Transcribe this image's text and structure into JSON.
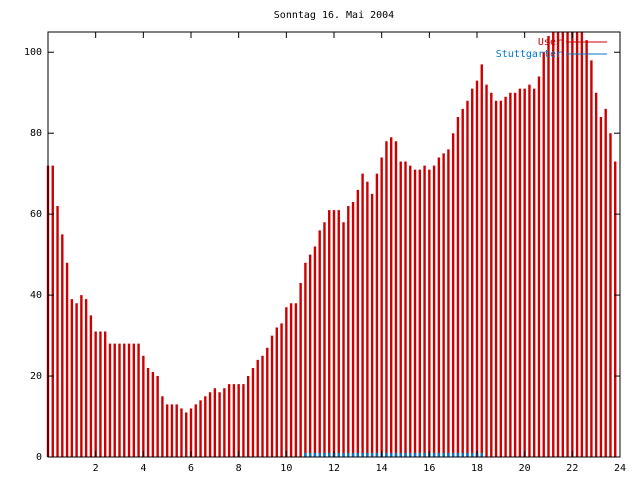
{
  "chart_data": {
    "type": "impulses",
    "title": "Sonntag 16. Mai 2004",
    "x": [
      0,
      0.2,
      0.4,
      0.6,
      0.8,
      1,
      1.2,
      1.4,
      1.6,
      1.8,
      2,
      2.2,
      2.4,
      2.6,
      2.8,
      3,
      3.2,
      3.4,
      3.6,
      3.8,
      4,
      4.2,
      4.4,
      4.6,
      4.8,
      5,
      5.2,
      5.4,
      5.6,
      5.8,
      6,
      6.2,
      6.4,
      6.6,
      6.8,
      7,
      7.2,
      7.4,
      7.6,
      7.8,
      8,
      8.2,
      8.4,
      8.6,
      8.8,
      9,
      9.2,
      9.4,
      9.6,
      9.8,
      10,
      10.2,
      10.4,
      10.6,
      10.8,
      11,
      11.2,
      11.4,
      11.6,
      11.8,
      12,
      12.2,
      12.4,
      12.6,
      12.8,
      13,
      13.2,
      13.4,
      13.6,
      13.8,
      14,
      14.2,
      14.4,
      14.6,
      14.8,
      15,
      15.2,
      15.4,
      15.6,
      15.8,
      16,
      16.2,
      16.4,
      16.6,
      16.8,
      17,
      17.2,
      17.4,
      17.6,
      17.8,
      18,
      18.2,
      18.4,
      18.6,
      18.8,
      19,
      19.2,
      19.4,
      19.6,
      19.8,
      20,
      20.2,
      20.4,
      20.6,
      20.8,
      21,
      21.2,
      21.4,
      21.6,
      21.8,
      22,
      22.2,
      22.4,
      22.6,
      22.8,
      23,
      23.2,
      23.4,
      23.6,
      23.8
    ],
    "series": [
      {
        "name": "User",
        "color": "#cc0000",
        "values": [
          72,
          72,
          62,
          55,
          48,
          39,
          38,
          40,
          39,
          35,
          31,
          31,
          31,
          28,
          28,
          28,
          28,
          28,
          28,
          28,
          25,
          22,
          21,
          20,
          15,
          13,
          13,
          13,
          12,
          11,
          12,
          13,
          14,
          15,
          16,
          17,
          16,
          17,
          18,
          18,
          18,
          18,
          20,
          22,
          24,
          25,
          27,
          30,
          32,
          33,
          37,
          38,
          38,
          43,
          48,
          50,
          52,
          56,
          58,
          61,
          61,
          61,
          58,
          62,
          63,
          66,
          70,
          68,
          65,
          70,
          74,
          78,
          79,
          78,
          73,
          73,
          72,
          71,
          71,
          72,
          71,
          72,
          74,
          75,
          76,
          80,
          84,
          86,
          88,
          91,
          93,
          97,
          92,
          90,
          88,
          88,
          89,
          90,
          90,
          91,
          91,
          92,
          91,
          94,
          100,
          104,
          105,
          105,
          105,
          105,
          105,
          105,
          105,
          103,
          98,
          90,
          84,
          86,
          80,
          73
        ]
      },
      {
        "name": "Stuttgarter",
        "color": "#0077cc",
        "values": [
          0,
          0,
          0,
          0,
          0,
          0,
          0,
          0,
          0,
          0,
          0,
          0,
          0,
          0,
          0,
          0,
          0,
          0,
          0,
          0,
          0,
          0,
          0,
          0,
          0,
          0,
          0,
          0,
          0,
          0,
          0,
          0,
          0,
          0,
          0,
          0,
          0,
          0,
          0,
          0,
          0,
          0,
          0,
          0,
          0,
          0,
          0,
          0,
          0,
          0,
          0,
          0,
          0,
          0,
          1,
          1,
          1,
          1,
          1,
          1,
          1,
          1,
          1,
          1,
          1,
          1,
          1,
          1,
          1,
          1,
          1,
          1,
          1,
          1,
          1,
          1,
          1,
          1,
          1,
          1,
          1,
          1,
          1,
          1,
          1,
          1,
          1,
          1,
          1,
          1,
          1,
          1,
          0,
          0,
          0,
          0,
          0,
          0,
          0,
          0,
          0,
          0,
          0,
          0,
          0,
          0,
          0,
          0,
          0,
          0,
          0,
          0,
          0,
          0,
          0,
          0,
          0,
          0,
          0,
          0
        ]
      }
    ],
    "xlim": [
      0,
      24
    ],
    "xticks": [
      2,
      4,
      6,
      8,
      10,
      12,
      14,
      16,
      18,
      20,
      22,
      24
    ],
    "ylim": [
      0,
      105
    ],
    "yticks": [
      0,
      20,
      40,
      60,
      80,
      100
    ],
    "legend": "top-right"
  }
}
